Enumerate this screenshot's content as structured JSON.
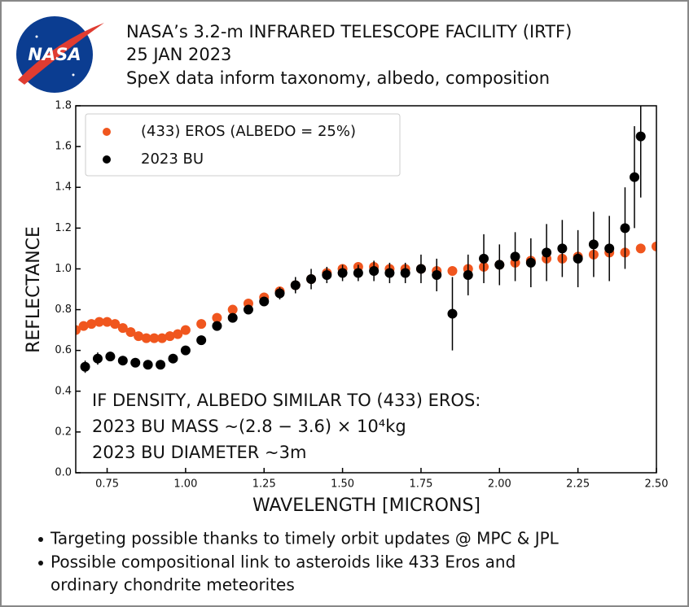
{
  "header": {
    "logo": "NASA",
    "lines": [
      "NASA’s 3.2-m INFRARED TELESCOPE FACILITY (IRTF)",
      "25 JAN 2023",
      "SpeX data inform taxonomy, albedo, composition"
    ]
  },
  "chart_data": {
    "type": "scatter",
    "xlabel": "WAVELENGTH [MICRONS]",
    "ylabel": "REFLECTANCE",
    "annotations": [
      "IF DENSITY, ALBEDO SIMILAR TO (433) EROS:",
      "2023 BU MASS  ~(2.8 − 3.6) × 10⁴kg",
      "2023 BU DIAMETER  ~3m"
    ],
    "legend": "upper left",
    "xlim": [
      0.65,
      2.5
    ],
    "ylim": [
      0,
      1.8
    ],
    "xticks": [
      0.75,
      {
        "value": 1,
        "label": "1.00"
      },
      1.25,
      {
        "value": 1.5,
        "label": "1.50"
      },
      1.75,
      {
        "value": 2,
        "label": "2.00"
      },
      2.25,
      {
        "value": 2.5,
        "label": "2.50"
      }
    ],
    "yticks": [
      {
        "value": 0,
        "label": "0.0"
      },
      0.2,
      0.4,
      0.6,
      0.8,
      {
        "value": 1,
        "label": "1.0"
      },
      1.2,
      1.4,
      1.6,
      1.8
    ],
    "series": [
      {
        "name": "(433) EROS (ALBEDO = 25%)",
        "color": "#f0561e",
        "x": [
          0.65,
          0.675,
          0.7,
          0.725,
          0.75,
          0.775,
          0.8,
          0.825,
          0.85,
          0.875,
          0.9,
          0.925,
          0.95,
          0.975,
          1.0,
          1.05,
          1.1,
          1.15,
          1.2,
          1.25,
          1.3,
          1.35,
          1.4,
          1.45,
          1.5,
          1.55,
          1.6,
          1.65,
          1.7,
          1.75,
          1.8,
          1.85,
          1.9,
          1.95,
          2.0,
          2.05,
          2.1,
          2.15,
          2.2,
          2.25,
          2.3,
          2.35,
          2.4,
          2.45,
          2.5
        ],
        "values": [
          0.7,
          0.72,
          0.73,
          0.74,
          0.74,
          0.73,
          0.71,
          0.69,
          0.67,
          0.66,
          0.66,
          0.66,
          0.67,
          0.68,
          0.7,
          0.73,
          0.76,
          0.8,
          0.83,
          0.86,
          0.89,
          0.92,
          0.95,
          0.98,
          1.0,
          1.01,
          1.01,
          1.0,
          1.0,
          1.0,
          0.99,
          0.99,
          1.0,
          1.01,
          1.02,
          1.03,
          1.04,
          1.05,
          1.05,
          1.06,
          1.07,
          1.08,
          1.08,
          1.1,
          1.11
        ]
      },
      {
        "name": "2023 BU",
        "color": "#000000",
        "x": [
          0.68,
          0.72,
          0.76,
          0.8,
          0.84,
          0.88,
          0.92,
          0.96,
          1.0,
          1.05,
          1.1,
          1.15,
          1.2,
          1.25,
          1.3,
          1.35,
          1.4,
          1.45,
          1.5,
          1.55,
          1.6,
          1.65,
          1.7,
          1.75,
          1.8,
          1.85,
          1.9,
          1.95,
          2.0,
          2.05,
          2.1,
          2.15,
          2.2,
          2.25,
          2.3,
          2.35,
          2.4,
          2.43,
          2.45
        ],
        "values": [
          0.52,
          0.56,
          0.57,
          0.55,
          0.54,
          0.53,
          0.53,
          0.56,
          0.6,
          0.65,
          0.72,
          0.76,
          0.8,
          0.84,
          0.88,
          0.92,
          0.95,
          0.97,
          0.98,
          0.98,
          0.99,
          0.98,
          0.98,
          1.0,
          0.97,
          0.78,
          0.97,
          1.05,
          1.02,
          1.06,
          1.03,
          1.08,
          1.1,
          1.05,
          1.12,
          1.1,
          1.2,
          1.45,
          1.65
        ],
        "errors": [
          0.03,
          0.03,
          0.02,
          0.02,
          0.02,
          0.02,
          0.02,
          0.02,
          0.02,
          0.02,
          0.02,
          0.02,
          0.02,
          0.02,
          0.03,
          0.04,
          0.05,
          0.04,
          0.04,
          0.04,
          0.05,
          0.05,
          0.05,
          0.07,
          0.08,
          0.18,
          0.1,
          0.12,
          0.1,
          0.12,
          0.12,
          0.14,
          0.14,
          0.14,
          0.16,
          0.16,
          0.2,
          0.25,
          0.3
        ]
      }
    ]
  },
  "bullets": [
    [
      "Targeting possible thanks to timely orbit updates @ MPC & JPL"
    ],
    [
      "Possible compositional link to asteroids like 433 Eros and",
      "ordinary chondrite meteorites"
    ]
  ]
}
